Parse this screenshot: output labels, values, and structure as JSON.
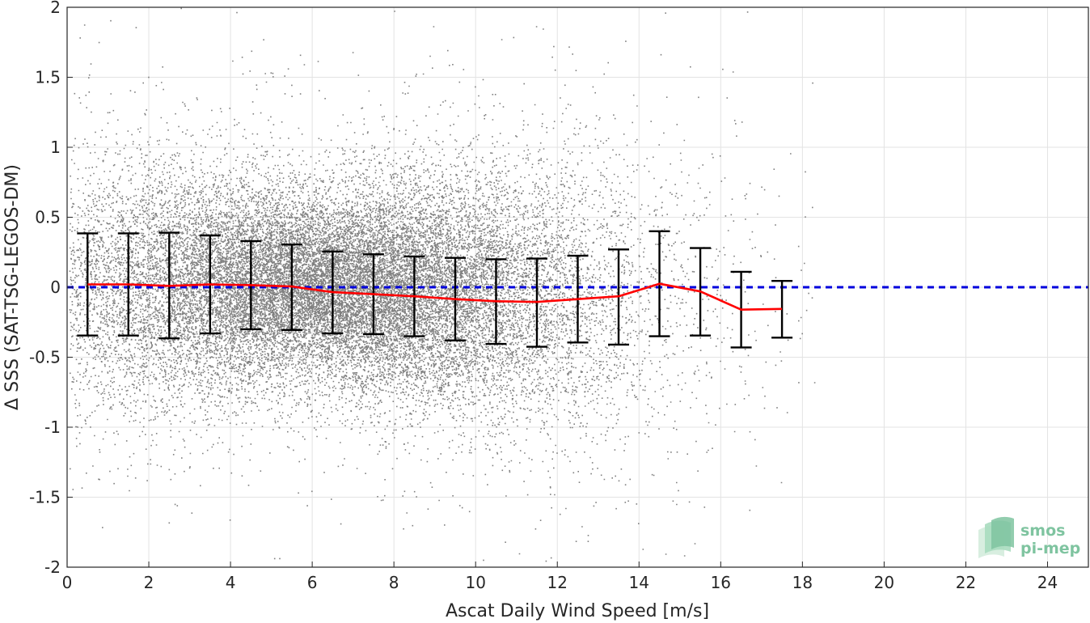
{
  "chart_data": {
    "type": "scatter",
    "xlabel": "Ascat Daily Wind Speed [m/s]",
    "ylabel": "Δ SSS (SAT-TSG-LEGOS-DM)",
    "xlim": [
      0,
      25
    ],
    "ylim": [
      -2,
      2
    ],
    "xticks": [
      "0",
      "2",
      "4",
      "6",
      "8",
      "10",
      "12",
      "14",
      "16",
      "18",
      "20",
      "22",
      "24"
    ],
    "yticks": [
      "2",
      "1.5",
      "1",
      "0.5",
      "0",
      "-0.5",
      "-1",
      "-1.5",
      "-2"
    ],
    "grid": true,
    "scatter_color": "#808080",
    "series": [
      {
        "kind": "errorbar",
        "color": "#000000",
        "x": [
          0.5,
          1.5,
          2.5,
          3.5,
          4.5,
          5.5,
          6.5,
          7.5,
          8.5,
          9.5,
          10.5,
          11.5,
          12.5,
          13.5,
          14.5,
          15.5,
          16.5,
          17.5
        ],
        "mean": [
          0.02,
          0.02,
          0.01,
          0.02,
          0.015,
          0.005,
          -0.035,
          -0.05,
          -0.065,
          -0.085,
          -0.1,
          -0.105,
          -0.085,
          -0.065,
          0.025,
          -0.03,
          -0.16,
          -0.155
        ],
        "upper": [
          0.385,
          0.385,
          0.39,
          0.37,
          0.33,
          0.305,
          0.255,
          0.235,
          0.22,
          0.21,
          0.2,
          0.205,
          0.225,
          0.27,
          0.4,
          0.28,
          0.11,
          0.045
        ],
        "lower": [
          -0.345,
          -0.345,
          -0.365,
          -0.33,
          -0.3,
          -0.305,
          -0.33,
          -0.335,
          -0.35,
          -0.38,
          -0.405,
          -0.425,
          -0.395,
          -0.41,
          -0.35,
          -0.345,
          -0.43,
          -0.36
        ]
      },
      {
        "kind": "mean-line",
        "color": "#ff0000",
        "x": [
          0.5,
          1.5,
          2.5,
          3.5,
          4.5,
          5.5,
          6.5,
          7.5,
          8.5,
          9.5,
          10.5,
          11.5,
          12.5,
          13.5,
          14.5,
          15.5,
          16.5,
          17.5
        ],
        "values": [
          0.02,
          0.02,
          0.01,
          0.02,
          0.015,
          0.005,
          -0.035,
          -0.05,
          -0.065,
          -0.085,
          -0.1,
          -0.105,
          -0.085,
          -0.065,
          0.025,
          -0.03,
          -0.16,
          -0.155
        ]
      },
      {
        "kind": "reference-line",
        "color": "#0000dd",
        "style": "dashed",
        "y": 0
      }
    ]
  },
  "logo": {
    "line1": "smos",
    "line2": "pi-mep",
    "color": "#7fc4a0"
  }
}
